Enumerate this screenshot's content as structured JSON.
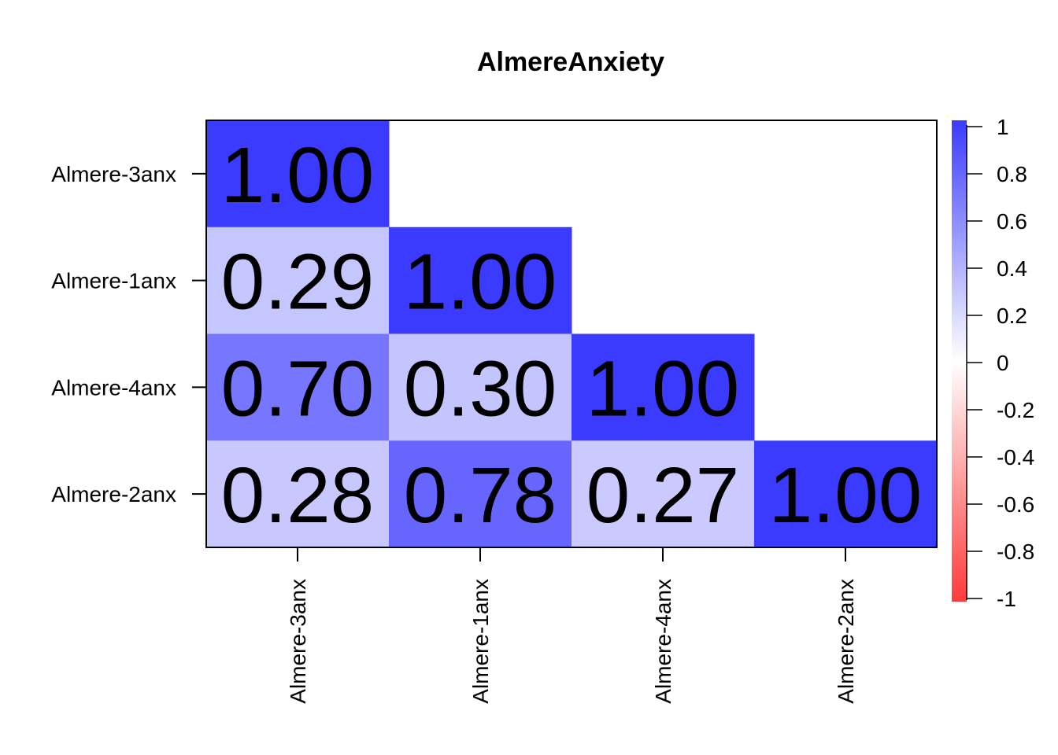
{
  "chart_data": {
    "type": "heatmap",
    "title": "AlmereAnxiety",
    "row_labels": [
      "Almere-3anx",
      "Almere-1anx",
      "Almere-4anx",
      "Almere-2anx"
    ],
    "col_labels": [
      "Almere-3anx",
      "Almere-1anx",
      "Almere-4anx",
      "Almere-2anx"
    ],
    "matrix": [
      [
        1.0,
        null,
        null,
        null
      ],
      [
        0.29,
        1.0,
        null,
        null
      ],
      [
        0.7,
        0.3,
        1.0,
        null
      ],
      [
        0.28,
        0.78,
        0.27,
        1.0
      ]
    ],
    "cell_labels": [
      [
        "1.00",
        "",
        "",
        ""
      ],
      [
        "0.29",
        "1.00",
        "",
        ""
      ],
      [
        "0.70",
        "0.30",
        "1.00",
        ""
      ],
      [
        "0.28",
        "0.78",
        "0.27",
        "1.00"
      ]
    ],
    "color_scale": {
      "min": -1,
      "max": 1,
      "low_color": "#ff3b3b",
      "mid_color": "#ffffff",
      "high_color": "#3b3bff",
      "ticks": [
        1,
        0.8,
        0.6,
        0.4,
        0.2,
        0,
        -0.2,
        -0.4,
        -0.6,
        -0.8,
        -1
      ],
      "tick_labels": [
        "1",
        "0.8",
        "0.6",
        "0.4",
        "0.2",
        "0",
        "-0.2",
        "-0.4",
        "-0.6",
        "-0.8",
        "-1"
      ]
    },
    "legend_position": "right"
  }
}
